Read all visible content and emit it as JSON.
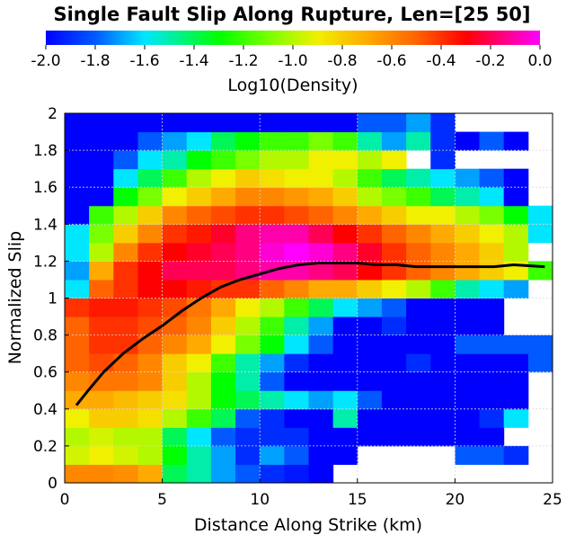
{
  "chart_data": {
    "type": "heatmap",
    "title": "Single Fault Slip Along Rupture, Len=[25 50]",
    "xlabel": "Distance Along Strike (km)",
    "ylabel": "Normalized Slip",
    "xlim": [
      0,
      25
    ],
    "ylim": [
      0,
      2
    ],
    "xticks": [
      0,
      5,
      10,
      15,
      20,
      25
    ],
    "yticks": [
      0,
      0.2,
      0.4,
      0.6,
      0.8,
      1,
      1.2,
      1.4,
      1.6,
      1.8,
      2
    ],
    "colorbar": {
      "label": "Log10(Density)",
      "range": [
        -2.0,
        0.0
      ],
      "ticks": [
        "-2.0",
        "-1.8",
        "-1.6",
        "-1.4",
        "-1.2",
        "-1.0",
        "-0.8",
        "-0.6",
        "-0.4",
        "-0.2",
        "0.0"
      ]
    },
    "grid": true,
    "heatmap_note_density": "log10 density per bin; absent bins are empty (white)",
    "bins": {
      "x_start": 0,
      "x_step": 1.25,
      "y_start": 0,
      "y_step": 0.1,
      "nx": 20,
      "ny": 20
    },
    "density": [
      [
        -0.6,
        -0.6,
        -0.62,
        -0.7,
        -1.4,
        -1.5,
        -1.7,
        -1.8,
        -1.9,
        -1.95,
        -2.0,
        null,
        null,
        null,
        null,
        null,
        null,
        null,
        null,
        null
      ],
      [
        -0.95,
        -0.9,
        -0.95,
        -1.0,
        -1.3,
        -1.5,
        -1.7,
        -1.9,
        -1.7,
        -1.8,
        -2.0,
        -2.0,
        null,
        null,
        null,
        null,
        -1.8,
        -1.8,
        -1.9,
        null
      ],
      [
        -1.0,
        -0.95,
        -1.0,
        -1.0,
        -1.4,
        -1.6,
        -1.8,
        -1.9,
        -1.9,
        -1.9,
        -2.0,
        -2.0,
        -2.0,
        -2.0,
        -2.0,
        -2.0,
        -2.0,
        -2.0,
        null,
        null
      ],
      [
        -0.9,
        -0.8,
        -0.8,
        -0.85,
        -1.0,
        -1.2,
        -1.4,
        -1.8,
        -1.9,
        -2.0,
        -2.0,
        -1.5,
        -2.0,
        -2.0,
        -2.0,
        -2.0,
        -2.0,
        -1.9,
        -1.6,
        null
      ],
      [
        -0.7,
        -0.7,
        -0.75,
        -0.8,
        -0.85,
        -1.0,
        -1.3,
        -1.4,
        -1.5,
        -1.6,
        -1.7,
        -1.6,
        -1.8,
        -2.0,
        -2.0,
        -2.0,
        -2.0,
        -2.0,
        -2.0,
        null
      ],
      [
        -0.6,
        -0.55,
        -0.55,
        -0.6,
        -0.8,
        -1.0,
        -1.3,
        -1.5,
        -1.8,
        -2.0,
        -2.0,
        -2.0,
        -2.0,
        -2.0,
        -2.0,
        -2.0,
        -2.0,
        -2.0,
        -2.0,
        null
      ],
      [
        -0.5,
        -0.45,
        -0.5,
        -0.6,
        -0.8,
        -0.9,
        -1.2,
        -1.5,
        -1.7,
        -1.9,
        -2.0,
        -2.0,
        -2.0,
        -2.0,
        -1.9,
        -2.0,
        -2.0,
        -2.0,
        -2.0,
        -1.8
      ],
      [
        -0.5,
        -0.4,
        -0.4,
        -0.5,
        -0.6,
        -0.7,
        -0.9,
        -1.1,
        -1.3,
        -1.6,
        -1.8,
        -2.0,
        -2.0,
        -2.0,
        -2.0,
        -2.0,
        -1.8,
        -1.8,
        -1.8,
        -1.8
      ],
      [
        -0.5,
        -0.4,
        -0.4,
        -0.45,
        -0.5,
        -0.6,
        -0.8,
        -1.0,
        -1.2,
        -1.5,
        -1.7,
        -2.0,
        -2.0,
        -1.9,
        -2.0,
        -2.0,
        -2.0,
        -2.0,
        null,
        null
      ],
      [
        -0.4,
        -0.35,
        -0.35,
        -0.4,
        -0.45,
        -0.55,
        -0.7,
        -0.9,
        -1.0,
        -1.2,
        -1.4,
        -1.6,
        -1.7,
        -1.8,
        -2.0,
        -2.0,
        -2.0,
        -2.0,
        null,
        null
      ],
      [
        -1.6,
        -0.5,
        -0.4,
        -0.3,
        -0.3,
        -0.35,
        -0.4,
        -0.4,
        -0.5,
        -0.6,
        -0.7,
        -0.7,
        -0.8,
        -0.9,
        -1.0,
        -1.2,
        -1.5,
        -1.6,
        -1.7,
        null
      ],
      [
        -1.7,
        -0.7,
        -0.4,
        -0.3,
        -0.2,
        -0.2,
        -0.2,
        -0.15,
        -0.1,
        -0.1,
        -0.15,
        -0.2,
        -0.3,
        -0.4,
        -0.5,
        -0.6,
        -0.7,
        -0.8,
        -0.9,
        -1.2
      ],
      [
        -1.6,
        -1.0,
        -0.6,
        -0.4,
        -0.3,
        -0.25,
        -0.2,
        -0.15,
        -0.05,
        0.0,
        -0.05,
        -0.15,
        -0.25,
        -0.4,
        -0.5,
        -0.6,
        -0.7,
        -0.8,
        -1.0,
        null
      ],
      [
        -1.6,
        -1.1,
        -0.8,
        -0.6,
        -0.4,
        -0.35,
        -0.25,
        -0.15,
        -0.1,
        -0.1,
        -0.2,
        -0.3,
        -0.4,
        -0.5,
        -0.6,
        -0.7,
        -0.8,
        -0.9,
        -1.0,
        -1.6
      ],
      [
        -2.0,
        -1.2,
        -1.0,
        -0.8,
        -0.6,
        -0.5,
        -0.45,
        -0.4,
        -0.4,
        -0.45,
        -0.5,
        -0.6,
        -0.7,
        -0.8,
        -0.9,
        -0.9,
        -1.0,
        -1.1,
        -1.3,
        -1.6
      ],
      [
        -2.0,
        -2.0,
        -1.3,
        -1.1,
        -0.9,
        -0.8,
        -0.7,
        -0.6,
        -0.6,
        -0.65,
        -0.7,
        -0.8,
        -1.0,
        -1.1,
        -1.2,
        -1.4,
        -1.5,
        -1.6,
        -2.0,
        null
      ],
      [
        -2.0,
        -2.0,
        -1.6,
        -1.4,
        -1.2,
        -1.0,
        -0.9,
        -0.8,
        -0.85,
        -0.9,
        -0.9,
        -1.0,
        -1.2,
        -1.4,
        -1.5,
        -1.6,
        -1.7,
        -1.8,
        -2.0,
        null
      ],
      [
        -2.0,
        -2.0,
        -1.8,
        -1.6,
        -1.5,
        -1.3,
        -1.2,
        -1.1,
        -1.0,
        -1.0,
        -0.9,
        -0.9,
        -1.0,
        -0.9,
        null,
        -1.9,
        null,
        null,
        null,
        null
      ],
      [
        -2.0,
        -2.0,
        -2.0,
        -1.8,
        -1.7,
        -1.6,
        -1.4,
        -1.3,
        -1.2,
        -1.2,
        -1.1,
        -1.2,
        -1.5,
        -1.7,
        -1.5,
        -1.9,
        -2.0,
        -1.8,
        -2.0,
        null
      ],
      [
        -2.0,
        -2.0,
        -2.0,
        -2.0,
        -2.0,
        -2.0,
        -2.0,
        -2.0,
        -2.0,
        -2.0,
        -2.0,
        -2.0,
        -1.8,
        -1.8,
        -1.7,
        -1.9,
        null,
        null,
        null,
        null
      ]
    ],
    "series": [
      {
        "type": "line",
        "color": "#000000",
        "x": [
          0.6,
          1.2,
          2.0,
          3.0,
          4.0,
          5.0,
          6.0,
          7.0,
          8.0,
          9.0,
          10.0,
          11.0,
          12.0,
          13.0,
          14.0,
          15.0,
          16.0,
          17.0,
          18.0,
          19.0,
          20.0,
          21.0,
          22.0,
          23.0,
          24.6
        ],
        "y": [
          0.42,
          0.5,
          0.6,
          0.7,
          0.78,
          0.85,
          0.93,
          1.0,
          1.06,
          1.1,
          1.13,
          1.16,
          1.18,
          1.19,
          1.19,
          1.19,
          1.18,
          1.18,
          1.17,
          1.17,
          1.17,
          1.17,
          1.17,
          1.18,
          1.17
        ]
      }
    ]
  }
}
